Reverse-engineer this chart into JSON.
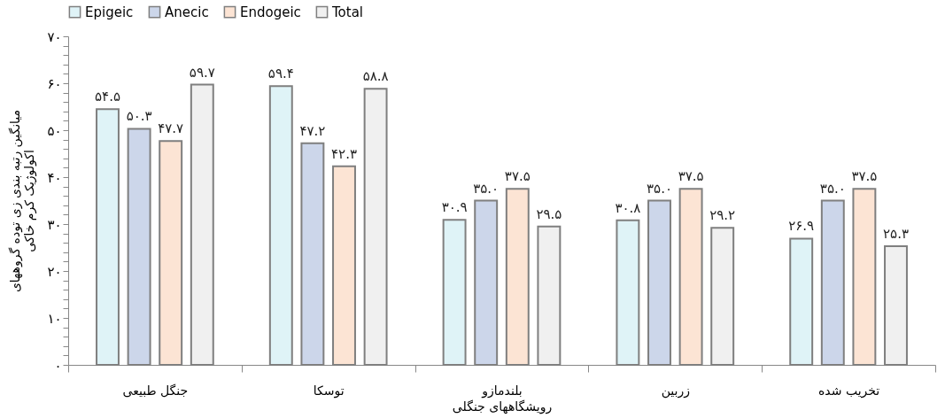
{
  "chart_data": {
    "type": "bar",
    "xlabel": "رویشگاههای جنگلی",
    "ylabel": "میانگین رتبه بندی زی توده گروههای\nاکولوژیک کرم خاکی",
    "categories": [
      "جنگل طبیعی",
      "توسکا",
      "بلندمازو",
      "زربین",
      "تخریب شده"
    ],
    "series": [
      {
        "name": "Epigeic",
        "color": "#dff3f7",
        "values": [
          54.5,
          59.4,
          30.9,
          30.8,
          26.9
        ],
        "value_labels": [
          "۵۴.۵",
          "۵۹.۴",
          "۳۰.۹",
          "۳۰.۸",
          "۲۶.۹"
        ]
      },
      {
        "name": "Anecic",
        "color": "#ccd6ea",
        "values": [
          50.3,
          47.2,
          35.0,
          35.0,
          35.0
        ],
        "value_labels": [
          "۵۰.۳",
          "۴۷.۲",
          "۳۵.۰",
          "۳۵.۰",
          "۳۵.۰"
        ]
      },
      {
        "name": "Endogeic",
        "color": "#fce4d4",
        "values": [
          47.7,
          42.3,
          37.5,
          37.5,
          37.5
        ],
        "value_labels": [
          "۴۷.۷",
          "۴۲.۳",
          "۳۷.۵",
          "۳۷.۵",
          "۳۷.۵"
        ]
      },
      {
        "name": "Total",
        "color": "#f0f0f0",
        "values": [
          59.7,
          58.8,
          29.5,
          29.2,
          25.3
        ],
        "value_labels": [
          "۵۹.۷",
          "۵۸.۸",
          "۲۹.۵",
          "۲۹.۲",
          "۲۵.۳"
        ]
      }
    ],
    "ylim": [
      0,
      70
    ],
    "yticks": [
      {
        "value": 0,
        "label": "۰"
      },
      {
        "value": 2,
        "label": null
      },
      {
        "value": 4,
        "label": null
      },
      {
        "value": 6,
        "label": null
      },
      {
        "value": 8,
        "label": null
      },
      {
        "value": 10,
        "label": "۱۰"
      },
      {
        "value": 12,
        "label": null
      },
      {
        "value": 14,
        "label": null
      },
      {
        "value": 16,
        "label": null
      },
      {
        "value": 18,
        "label": null
      },
      {
        "value": 20,
        "label": "۲۰"
      },
      {
        "value": 22,
        "label": null
      },
      {
        "value": 24,
        "label": null
      },
      {
        "value": 26,
        "label": null
      },
      {
        "value": 28,
        "label": null
      },
      {
        "value": 30,
        "label": "۳۰"
      },
      {
        "value": 32,
        "label": null
      },
      {
        "value": 34,
        "label": null
      },
      {
        "value": 36,
        "label": null
      },
      {
        "value": 38,
        "label": null
      },
      {
        "value": 40,
        "label": "۴۰"
      },
      {
        "value": 42,
        "label": null
      },
      {
        "value": 44,
        "label": null
      },
      {
        "value": 46,
        "label": null
      },
      {
        "value": 48,
        "label": null
      },
      {
        "value": 50,
        "label": "۵۰"
      },
      {
        "value": 52,
        "label": null
      },
      {
        "value": 54,
        "label": null
      },
      {
        "value": 56,
        "label": null
      },
      {
        "value": 58,
        "label": null
      },
      {
        "value": 60,
        "label": "۶۰"
      },
      {
        "value": 62,
        "label": null
      },
      {
        "value": 64,
        "label": null
      },
      {
        "value": 66,
        "label": null
      },
      {
        "value": 68,
        "label": null
      },
      {
        "value": 70,
        "label": "۷۰"
      }
    ],
    "legend": "top",
    "grid": false
  }
}
